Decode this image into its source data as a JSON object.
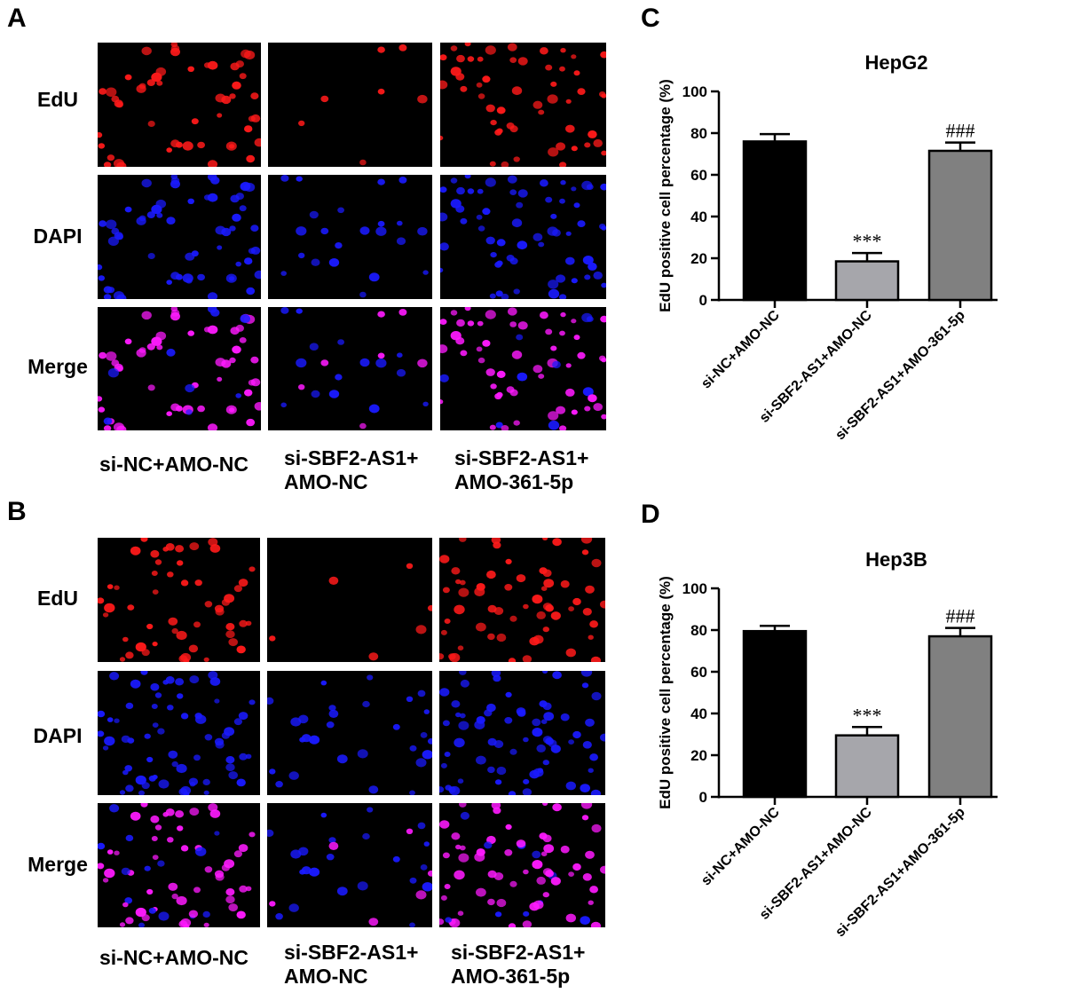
{
  "panels": {
    "A": {
      "letter": "A",
      "rows": [
        "EdU",
        "DAPI",
        "Merge"
      ],
      "columns": [
        [
          "si-NC+AMO-NC"
        ],
        [
          "si-SBF2-AS1+",
          "AMO-NC"
        ],
        [
          "si-SBF2-AS1+",
          "AMO-361-5p"
        ]
      ]
    },
    "B": {
      "letter": "B",
      "rows": [
        "EdU",
        "DAPI",
        "Merge"
      ],
      "columns": [
        [
          "si-NC+AMO-NC"
        ],
        [
          "si-SBF2-AS1+",
          "AMO-NC"
        ],
        [
          "si-SBF2-AS1+",
          "AMO-361-5p"
        ]
      ]
    },
    "C": {
      "letter": "C"
    },
    "D": {
      "letter": "D"
    }
  },
  "colors": {
    "edu": "#ff1a1a",
    "dapi": "#1a1aff",
    "merge": "#ff1aff",
    "bar1": "#000000",
    "bar2": "#a6a6ab",
    "bar3": "#808080"
  },
  "chart_data": [
    {
      "type": "bar",
      "title": "HepG2",
      "ylabel": "EdU positive cell percentage (%)",
      "xlabel": "",
      "categories": [
        "si-NC+AMO-NC",
        "si-SBF2-AS1+AMO-NC",
        "si-SBF2-AS1+AMO-361-5p"
      ],
      "values": [
        76,
        18.5,
        71.5
      ],
      "errors": [
        3.5,
        4,
        4
      ],
      "annotations": [
        "",
        "***",
        "###"
      ],
      "ylim": [
        0,
        100
      ],
      "yticks": [
        0,
        20,
        40,
        60,
        80,
        100
      ],
      "grid": false
    },
    {
      "type": "bar",
      "title": "Hep3B",
      "ylabel": "EdU positive cell percentage (%)",
      "xlabel": "",
      "categories": [
        "si-NC+AMO-NC",
        "si-SBF2-AS1+AMO-NC",
        "si-SBF2-AS1+AMO-361-5p"
      ],
      "values": [
        79.5,
        29.5,
        77
      ],
      "errors": [
        2.5,
        4,
        4
      ],
      "annotations": [
        "",
        "***",
        "###"
      ],
      "ylim": [
        0,
        100
      ],
      "yticks": [
        0,
        20,
        40,
        60,
        80,
        100
      ],
      "grid": false
    }
  ]
}
